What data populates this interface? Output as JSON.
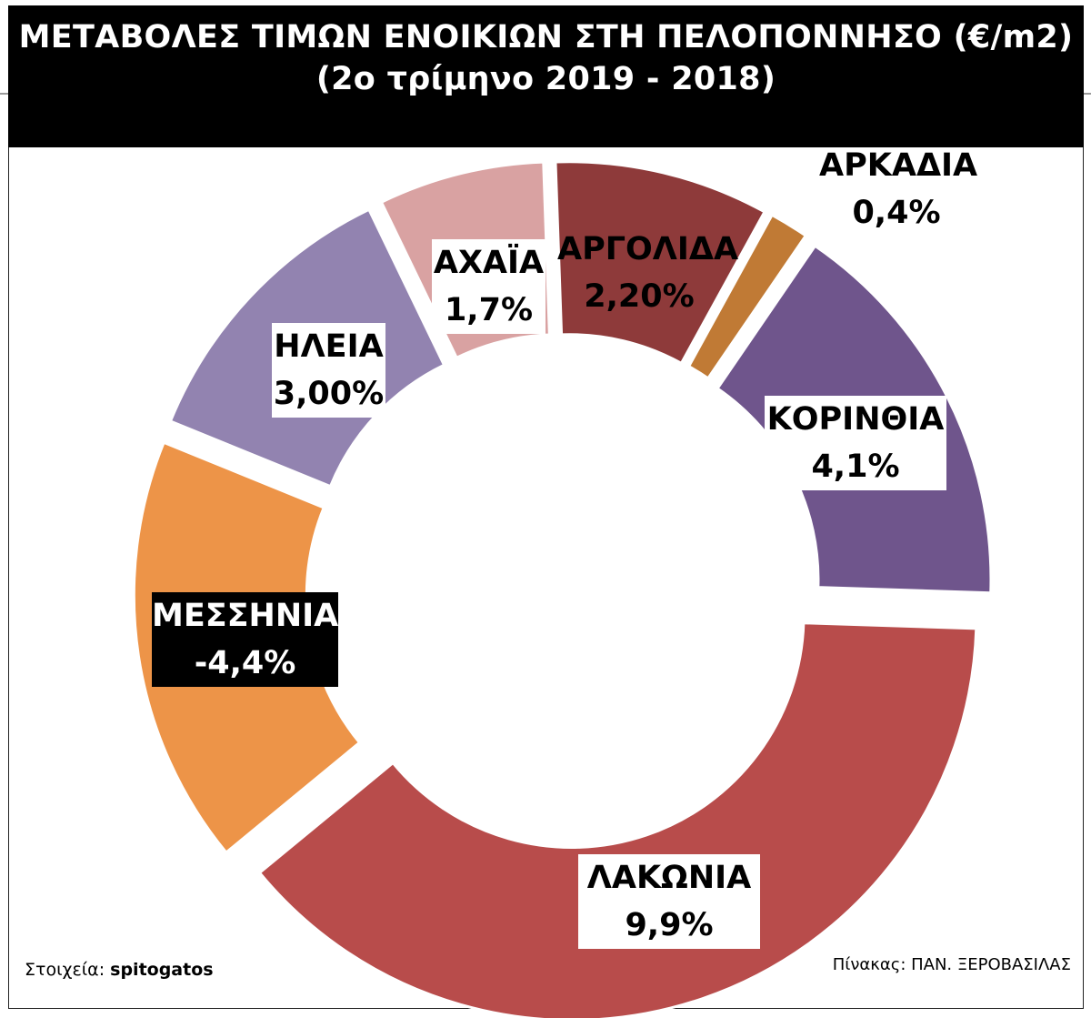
{
  "title": {
    "line1": "ΜΕΤΑΒΟΛΕΣ ΤΙΜΩΝ ΕΝΟΙΚΙΩΝ ΣΤΗ ΠΕΛΟΠΟΝΝΗΣΟ (€/m2)",
    "line2": "(2ο τρίμηνο 2019 - 2018)"
  },
  "chart_data": {
    "type": "pie",
    "variant": "exploded-donut",
    "title": "ΜΕΤΑΒΟΛΕΣ ΤΙΜΩΝ ΕΝΟΙΚΙΩΝ ΣΤΗ ΠΕΛΟΠΟΝΝΗΣΟ (€/m2)",
    "subtitle": "(2ο τρίμηνο 2019 - 2018)",
    "unit": "%",
    "slices": [
      {
        "name": "ΑΡΓΟΛΙΔΑ",
        "value": 2.2,
        "label": "2,20%",
        "color": "#8e3a3a"
      },
      {
        "name": "ΑΡΚΑΔΙΑ",
        "value": 0.4,
        "label": "0,4%",
        "color": "#c07a35"
      },
      {
        "name": "ΚΟΡΙΝΘΙΑ",
        "value": 4.1,
        "label": "4,1%",
        "color": "#6f558c"
      },
      {
        "name": "ΛΑΚΩΝΙΑ",
        "value": 9.9,
        "label": "9,9%",
        "color": "#b84c4b"
      },
      {
        "name": "ΜΕΣΣΗΝΙΑ",
        "value": -4.4,
        "label": "-4,4%",
        "color": "#ed9448"
      },
      {
        "name": "ΗΛΕΙΑ",
        "value": 3.0,
        "label": "3,00%",
        "color": "#9283b0"
      },
      {
        "name": "ΑΧΑΪΑ",
        "value": 1.7,
        "label": "1,7%",
        "color": "#d9a2a2"
      }
    ]
  },
  "footer": {
    "source_prefix": "Στοιχεία: ",
    "source_name": "spitogatos",
    "credit": "Πίνακας: ΠΑΝ. ΞΕΡΟΒΑΣΙΛΑΣ"
  }
}
